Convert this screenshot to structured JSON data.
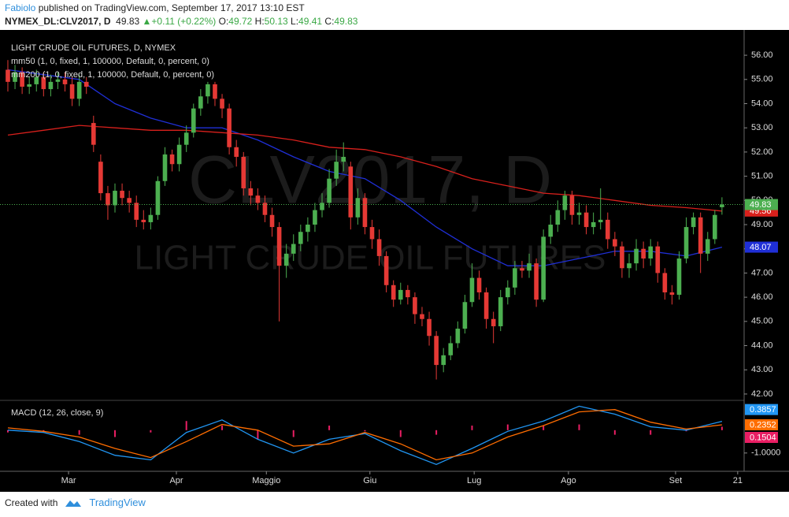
{
  "header": {
    "author": "Fabiolo",
    "published": "published on TradingView.com, September 17, 2017 13:10 EST",
    "symbol": "NYMEX_DL:CLV2017, D",
    "change": "+0.11 (+0.22%)",
    "ohlc_labels": [
      "O:",
      "H:",
      "L:",
      "C:"
    ]
  },
  "chart_data": [
    {
      "type": "candlestick",
      "title": "LIGHT CRUDE OIL FUTURES, D, NYMEX",
      "watermark": [
        "CLV2017, D",
        "LIGHT CRUDE OIL FUTURES"
      ],
      "up_color": "#4caf50",
      "down_color": "#e53935",
      "open": [
        55.4,
        54.9,
        55.3,
        54.7,
        54.8,
        55.1,
        54.6,
        54.9,
        55.0,
        54.8,
        54.2,
        54.9,
        53.2,
        51.6,
        50.3,
        49.8,
        50.4,
        50.1,
        49.9,
        49.2,
        49.1,
        49.4,
        50.8,
        51.9,
        51.5,
        52.3,
        52.8,
        53.8,
        54.3,
        54.8,
        54.2,
        53.8,
        52.2,
        51.8,
        50.5,
        50.2,
        49.9,
        49.4,
        48.9,
        47.3,
        47.8,
        48.2,
        48.7,
        49.0,
        49.6,
        49.9,
        50.9,
        51.6,
        51.4,
        49.3,
        50.1,
        48.9,
        48.4,
        47.7,
        46.5,
        45.9,
        46.3,
        46.0,
        45.3,
        45.1,
        44.4,
        43.2,
        43.6,
        44.1,
        44.7,
        45.8,
        46.8,
        46.2,
        45.1,
        44.8,
        46.0,
        46.4,
        47.2,
        47.1,
        47.4,
        45.9,
        48.5,
        49.0,
        49.6,
        50.2,
        49.4,
        49.5,
        48.9,
        49.1,
        49.2,
        48.4,
        48.1,
        47.2,
        47.4,
        48.0,
        47.6,
        48.1,
        47.0,
        46.2,
        46.1,
        47.6,
        48.9,
        49.3,
        47.8,
        48.4,
        49.72
      ],
      "high": [
        55.8,
        55.6,
        55.5,
        55.1,
        55.4,
        55.3,
        55.2,
        55.3,
        55.3,
        55.1,
        55.2,
        55.1,
        53.5,
        51.9,
        50.6,
        50.7,
        50.7,
        50.4,
        50.2,
        49.6,
        49.7,
        51.0,
        52.2,
        52.1,
        52.6,
        53.1,
        54.0,
        54.6,
        54.9,
        54.9,
        54.4,
        54.0,
        52.5,
        52.0,
        50.8,
        50.5,
        50.2,
        49.7,
        49.1,
        48.2,
        48.6,
        49.0,
        49.3,
        49.9,
        50.3,
        51.3,
        52.1,
        52.4,
        51.6,
        50.5,
        50.3,
        49.2,
        48.8,
        47.9,
        46.7,
        46.6,
        46.5,
        46.2,
        45.6,
        45.4,
        44.6,
        43.9,
        44.4,
        45.0,
        46.1,
        47.4,
        47.1,
        46.4,
        45.4,
        46.3,
        46.7,
        47.5,
        47.5,
        47.8,
        47.6,
        48.8,
        49.4,
        50.0,
        50.4,
        50.4,
        49.9,
        49.8,
        49.5,
        50.5,
        49.5,
        48.7,
        48.3,
        47.8,
        48.4,
        48.3,
        48.4,
        48.3,
        47.2,
        46.5,
        47.9,
        49.3,
        49.5,
        49.5,
        48.7,
        49.6,
        50.13
      ],
      "low": [
        54.5,
        54.6,
        54.4,
        54.4,
        54.5,
        54.3,
        54.3,
        54.6,
        54.5,
        53.9,
        53.9,
        54.4,
        52.0,
        50.0,
        49.2,
        49.5,
        49.8,
        49.5,
        48.9,
        48.8,
        48.8,
        49.2,
        50.6,
        51.2,
        51.2,
        52.0,
        52.6,
        53.5,
        54.0,
        53.9,
        53.4,
        51.9,
        51.4,
        50.2,
        49.8,
        49.6,
        49.1,
        48.5,
        45.0,
        46.8,
        47.5,
        47.9,
        48.3,
        48.7,
        49.3,
        49.7,
        50.6,
        51.2,
        48.8,
        49.0,
        48.6,
        48.0,
        47.3,
        46.2,
        45.6,
        45.7,
        45.7,
        44.9,
        44.8,
        44.0,
        42.6,
        42.9,
        43.4,
        43.9,
        44.5,
        45.6,
        45.9,
        44.7,
        44.1,
        44.6,
        45.7,
        46.1,
        46.8,
        46.8,
        45.6,
        45.8,
        48.2,
        48.7,
        49.2,
        49.0,
        49.0,
        48.6,
        48.6,
        48.8,
        48.0,
        47.7,
        46.8,
        46.8,
        47.1,
        47.2,
        47.3,
        46.6,
        45.9,
        45.7,
        45.9,
        47.4,
        48.6,
        47.0,
        47.5,
        48.2,
        49.41
      ],
      "close": [
        54.9,
        55.3,
        54.7,
        54.8,
        55.1,
        54.6,
        54.9,
        55.0,
        54.8,
        54.2,
        54.9,
        54.7,
        52.3,
        50.3,
        49.8,
        50.4,
        50.1,
        49.9,
        49.2,
        49.1,
        49.4,
        50.8,
        51.9,
        51.5,
        52.3,
        52.8,
        53.8,
        54.3,
        54.8,
        54.2,
        53.8,
        52.2,
        51.8,
        50.5,
        50.2,
        49.9,
        49.4,
        48.9,
        47.3,
        47.8,
        48.2,
        48.7,
        49.0,
        49.6,
        49.9,
        50.9,
        51.6,
        51.8,
        49.3,
        50.1,
        48.9,
        48.4,
        47.7,
        46.5,
        45.9,
        46.3,
        46.0,
        45.3,
        45.1,
        44.4,
        43.2,
        43.6,
        44.1,
        44.7,
        45.8,
        46.8,
        46.2,
        45.1,
        44.8,
        46.0,
        46.4,
        47.2,
        47.1,
        47.4,
        45.9,
        48.5,
        49.0,
        49.6,
        50.2,
        49.4,
        49.5,
        48.9,
        49.1,
        49.2,
        48.4,
        48.1,
        47.2,
        47.4,
        48.0,
        47.6,
        48.1,
        47.0,
        46.2,
        46.1,
        47.6,
        48.9,
        49.3,
        47.8,
        48.4,
        49.4,
        49.83
      ],
      "series": [
        {
          "name": "mm50 (1, 0, fixed, 1, 100000, Default, 0, percent, 0)",
          "color": "#1f2fd6",
          "x": [
            0,
            5,
            10,
            15,
            20,
            25,
            30,
            35,
            40,
            45,
            50,
            55,
            60,
            65,
            70,
            75,
            80,
            85,
            90,
            95,
            100
          ],
          "values": [
            55.4,
            55.2,
            55.0,
            54.0,
            53.4,
            53.0,
            53.0,
            52.5,
            51.8,
            51.2,
            50.9,
            50.0,
            48.9,
            48.0,
            47.3,
            47.3,
            47.6,
            47.9,
            47.9,
            47.7,
            48.07
          ]
        },
        {
          "name": "mm200 (1, 0, fixed, 1, 100000, Default, 0, percent, 0)",
          "color": "#d8201c",
          "x": [
            0,
            5,
            10,
            15,
            20,
            25,
            30,
            35,
            40,
            45,
            50,
            55,
            60,
            65,
            70,
            75,
            80,
            85,
            90,
            95,
            100
          ],
          "values": [
            52.7,
            52.9,
            53.1,
            53.0,
            52.9,
            52.9,
            52.8,
            52.7,
            52.5,
            52.2,
            52.1,
            51.8,
            51.4,
            50.9,
            50.6,
            50.3,
            50.2,
            50.0,
            49.8,
            49.7,
            49.56
          ]
        }
      ],
      "xlim": [
        -1.1,
        103.1
      ],
      "ylim": [
        41.77,
        56.98
      ],
      "yticks": [
        {
          "value": 42,
          "label": "42.00"
        },
        {
          "value": 43,
          "label": "43.00"
        },
        {
          "value": 44,
          "label": "44.00"
        },
        {
          "value": 45,
          "label": "45.00"
        },
        {
          "value": 46,
          "label": "46.00"
        },
        {
          "value": 47,
          "label": "47.00"
        },
        {
          "value": 48,
          "label": "48.00"
        },
        {
          "value": 49,
          "label": "49.00"
        },
        {
          "value": 50,
          "label": "50.00"
        },
        {
          "value": 51,
          "label": "51.00"
        },
        {
          "value": 52,
          "label": "52.00"
        },
        {
          "value": 53,
          "label": "53.00"
        },
        {
          "value": 54,
          "label": "54.00"
        },
        {
          "value": 55,
          "label": "55.00"
        },
        {
          "value": 56,
          "label": "56.00"
        }
      ]
    },
    {
      "type": "macd",
      "title": "MACD (12, 26, close, 9)",
      "x": [
        0,
        5,
        10,
        15,
        20,
        25,
        30,
        35,
        40,
        45,
        50,
        55,
        60,
        65,
        70,
        75,
        80,
        85,
        90,
        95,
        100
      ],
      "series": [
        {
          "color": "#2196f3",
          "values": [
            0.0,
            -0.1,
            -0.5,
            -1.1,
            -1.3,
            -0.1,
            0.45,
            -0.4,
            -1.0,
            -0.4,
            -0.15,
            -0.9,
            -1.5,
            -0.8,
            -0.05,
            0.4,
            1.05,
            0.7,
            0.15,
            0.0,
            0.3857
          ]
        },
        {
          "color": "#ff6d00",
          "values": [
            0.1,
            -0.05,
            -0.3,
            -0.8,
            -1.2,
            -0.5,
            0.25,
            0.0,
            -0.7,
            -0.6,
            -0.1,
            -0.6,
            -1.3,
            -1.0,
            -0.3,
            0.2,
            0.8,
            0.9,
            0.35,
            0.05,
            0.2352
          ]
        }
      ],
      "histogram": {
        "color": "#e91e63",
        "values": [
          -0.1,
          -0.05,
          -0.2,
          -0.3,
          -0.1,
          0.4,
          0.2,
          -0.4,
          -0.3,
          0.2,
          -0.05,
          -0.3,
          -0.2,
          0.2,
          0.25,
          0.2,
          0.25,
          -0.2,
          -0.2,
          -0.05,
          0.1504
        ]
      },
      "xlim": [
        -1.1,
        103.1
      ],
      "ylim": [
        -1.8,
        1.27
      ],
      "yticks": [
        {
          "value": -1,
          "label": "-1.0000"
        }
      ],
      "xticks": [
        {
          "value": 8.5,
          "label": "Mar"
        },
        {
          "value": 23.6,
          "label": "Apr"
        },
        {
          "value": 36.2,
          "label": "Maggio"
        },
        {
          "value": 50.7,
          "label": "Giu"
        },
        {
          "value": 65.3,
          "label": "Lug"
        },
        {
          "value": 78.5,
          "label": "Ago"
        },
        {
          "value": 93.5,
          "label": "Set"
        },
        {
          "value": 102.2,
          "label": "21"
        }
      ]
    }
  ],
  "footer": {
    "created": "Created with",
    "brand": "TradingView"
  }
}
